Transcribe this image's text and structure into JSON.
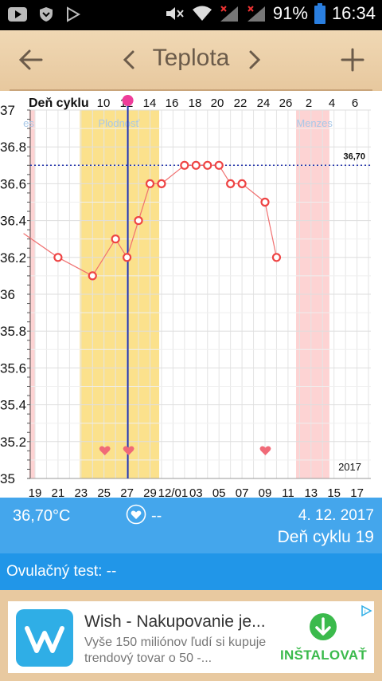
{
  "status_bar": {
    "battery": "91%",
    "time": "16:34"
  },
  "header": {
    "title": "Teplota"
  },
  "chart_data": {
    "type": "line",
    "header_label": "Deň cyklu",
    "cycle_day_labels": [
      "10",
      "12",
      "14",
      "16",
      "18",
      "20",
      "22",
      "24",
      "26",
      "2",
      "4",
      "6"
    ],
    "date_labels": [
      "19",
      "21",
      "23",
      "25",
      "27",
      "29",
      "12/01",
      "03",
      "05",
      "07",
      "09",
      "11",
      "13",
      "15",
      "17"
    ],
    "y_tick_labels": [
      "37",
      "36.8",
      "36.6",
      "36.4",
      "36.2",
      "36",
      "35.8",
      "35.6",
      "35.4",
      "35.2",
      "35"
    ],
    "ylim": [
      35,
      37
    ],
    "year_label": "2017",
    "reference_line": {
      "value": 36.7,
      "label": "36,70"
    },
    "bands": [
      {
        "label": "es",
        "color": "#fdd3d3"
      },
      {
        "label": "Plodnosť",
        "color": "#fbe18c"
      },
      {
        "label": "Menzes",
        "color": "#fdd3d3"
      }
    ],
    "series": [
      {
        "color": "#f07070",
        "points": [
          {
            "date": "18",
            "y": 36.33
          },
          {
            "date": "21",
            "y": 36.2
          },
          {
            "date": "24",
            "y": 36.1
          },
          {
            "date": "26",
            "y": 36.3
          },
          {
            "date": "27",
            "y": 36.2
          },
          {
            "date": "28",
            "y": 36.4
          },
          {
            "date": "29",
            "y": 36.6
          },
          {
            "date": "30",
            "y": 36.6
          },
          {
            "date": "12/02",
            "y": 36.7
          },
          {
            "date": "12/03",
            "y": 36.7
          },
          {
            "date": "12/04",
            "y": 36.7
          },
          {
            "date": "12/05",
            "y": 36.7
          },
          {
            "date": "12/06",
            "y": 36.6
          },
          {
            "date": "12/07",
            "y": 36.6
          },
          {
            "date": "12/09",
            "y": 36.5
          },
          {
            "date": "12/10",
            "y": 36.2
          }
        ]
      }
    ],
    "selected_day": "27"
  },
  "info": {
    "temperature": "36,70°C",
    "heart_value": "--",
    "date": "4. 12. 2017",
    "cycle_day": "Deň cyklu 19"
  },
  "ovulation": {
    "label": "Ovulačný test: --"
  },
  "ad": {
    "title": "Wish - Nakupovanie je...",
    "description": "Vyše 150 miliónov ľudí si kupuje trendový tovar o 50 -...",
    "cta": "INŠTALOVAŤ"
  }
}
